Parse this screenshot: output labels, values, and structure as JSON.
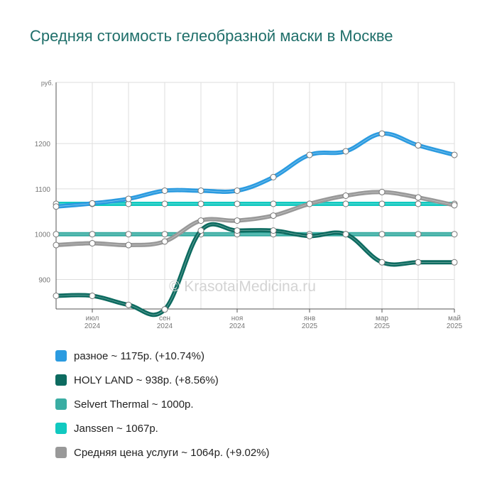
{
  "title": "Средняя стоимость гелеобразной маски в Москве",
  "watermark": "© KrasotaiMedicina.ru",
  "chart_data": {
    "type": "line",
    "ylabel": "руб.",
    "ylim": [
      835,
      1335
    ],
    "yticks": [
      900,
      1000,
      1100,
      1200
    ],
    "xticks": [
      {
        "month": "июл",
        "year": "2024",
        "x": 1
      },
      {
        "month": "сен",
        "year": "2024",
        "x": 3
      },
      {
        "month": "ноя",
        "year": "2024",
        "x": 5
      },
      {
        "month": "янв",
        "year": "2025",
        "x": 7
      },
      {
        "month": "мар",
        "year": "2025",
        "x": 9
      },
      {
        "month": "май",
        "year": "2025",
        "x": 11
      }
    ],
    "grid": true,
    "legend_position": "bottom",
    "series": [
      {
        "name": "разное",
        "legend": "разное ~ 1175р. (+10.74%)",
        "color": "#2b9be0",
        "values": [
          1061,
          1068,
          1078,
          1096,
          1096,
          1096,
          1126,
          1175,
          1183,
          1222,
          1196,
          1175
        ]
      },
      {
        "name": "HOLY LAND",
        "legend": "HOLY LAND ~ 938р. (+8.56%)",
        "color": "#0d6b60",
        "values": [
          864,
          864,
          844,
          834,
          1008,
          1008,
          1008,
          996,
          1000,
          938,
          938,
          938
        ]
      },
      {
        "name": "Selvert Thermal",
        "legend": "Selvert Thermal ~ 1000р.",
        "color": "#3aada3",
        "values": [
          1000,
          1000,
          1000,
          1000,
          1000,
          1000,
          1000,
          1000,
          1000,
          1000,
          1000,
          1000
        ]
      },
      {
        "name": "Janssen",
        "legend": "Janssen ~ 1067р.",
        "color": "#11c9c0",
        "values": [
          1067,
          1067,
          1067,
          1067,
          1067,
          1067,
          1067,
          1067,
          1067,
          1067,
          1067,
          1067
        ]
      },
      {
        "name": "Средняя цена услуги",
        "legend": "Средняя цена услуги ~ 1064р. (+9.02%)",
        "color": "#999999",
        "values": [
          976,
          980,
          976,
          984,
          1030,
          1030,
          1041,
          1067,
          1085,
          1093,
          1081,
          1064
        ]
      }
    ]
  }
}
